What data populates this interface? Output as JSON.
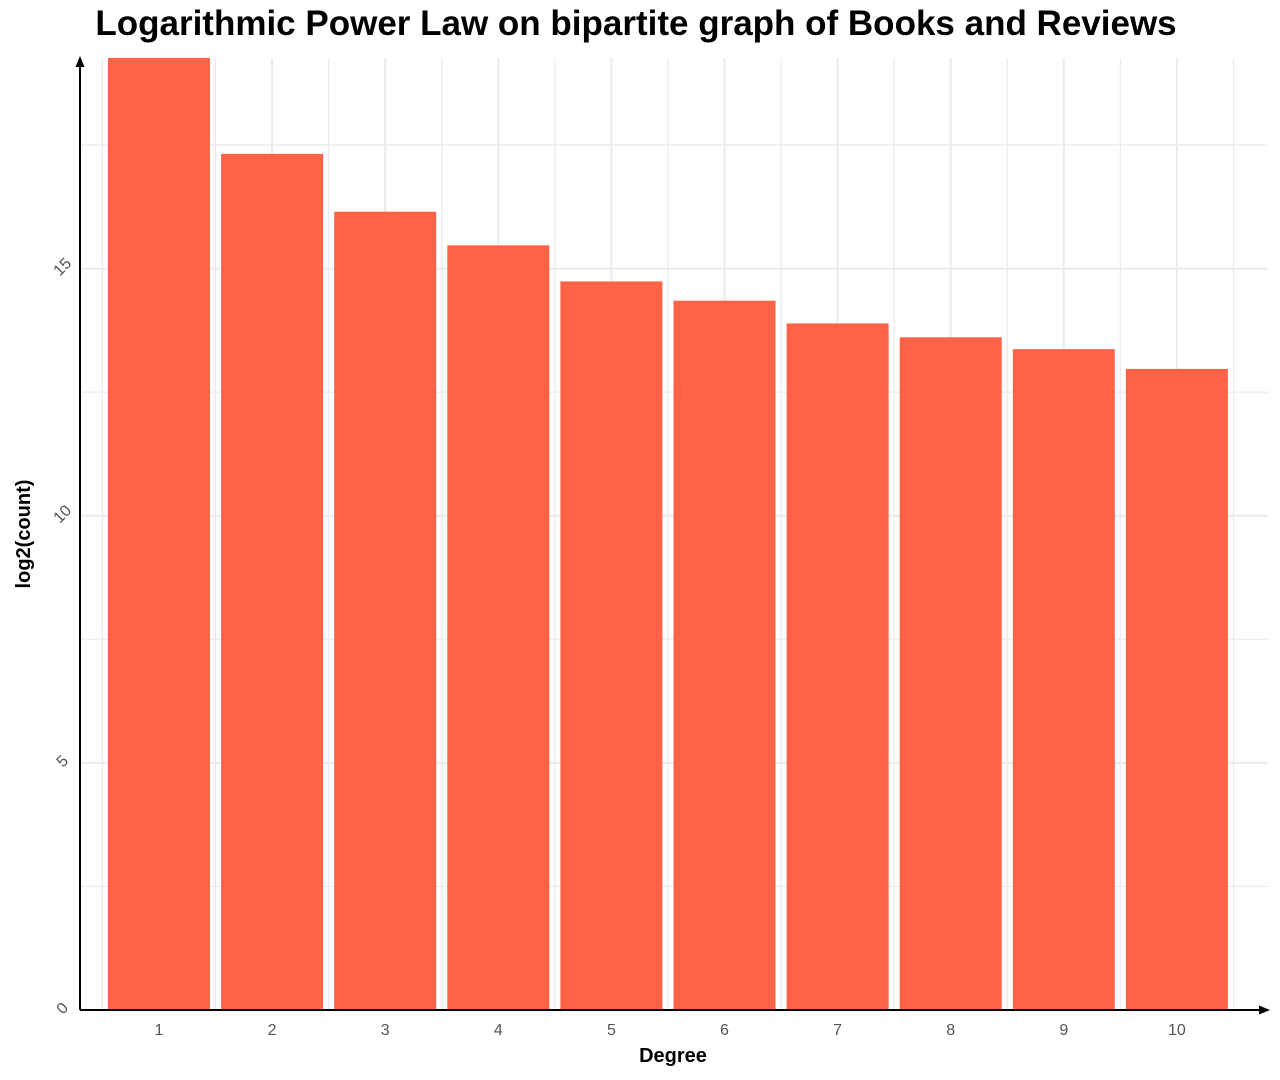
{
  "chart_data": {
    "type": "bar",
    "title": "Logarithmic Power Law on bipartite graph of Books and Reviews",
    "xlabel": "Degree",
    "ylabel": "log2(count)",
    "categories": [
      "1",
      "2",
      "3",
      "4",
      "5",
      "6",
      "7",
      "8",
      "9",
      "10"
    ],
    "values": [
      19.26,
      17.32,
      16.15,
      15.47,
      14.74,
      14.35,
      13.89,
      13.61,
      13.37,
      12.97
    ],
    "ylim": [
      0,
      19.26
    ],
    "yticks": [
      0,
      5,
      10,
      15
    ],
    "grid": true,
    "bar_color": "#FF6347",
    "grid_color": "#EBEBEB"
  }
}
